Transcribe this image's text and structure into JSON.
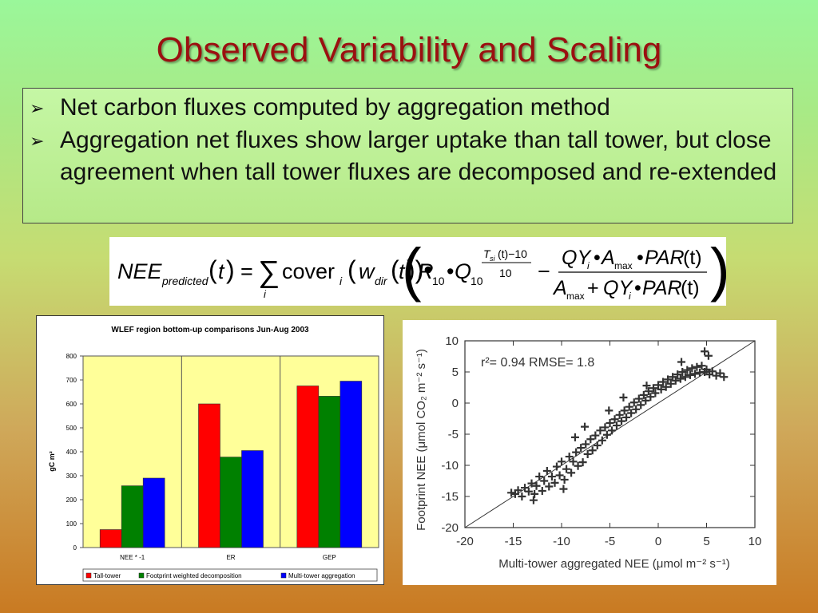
{
  "slide": {
    "title": "Observed Variability and Scaling",
    "bullets": [
      "Net carbon fluxes computed by aggregation method",
      "Aggregation net fluxes show larger uptake than tall tower, but close agreement when tall tower fluxes are decomposed and re-extended"
    ],
    "formula": {
      "lhs_main": "NEE",
      "lhs_sub": "predicted",
      "t": "t",
      "cover": "cover",
      "i": "i",
      "w": "w",
      "w_sub": "dir",
      "R": "R",
      "Q": "Q",
      "ten": "10",
      "Ts": "T",
      "Ts_sub": "si",
      "exp_tail": "(t)−10",
      "exp_den": "10",
      "QY": "QY",
      "Amax": "A",
      "max": "max",
      "PAR": "PAR"
    }
  },
  "chart_data": [
    {
      "type": "bar",
      "title": "WLEF region bottom-up comparisons Jun-Aug 2003",
      "ylabel": "gC m²",
      "xlabel": "",
      "categories": [
        "NEE * -1",
        "ER",
        "GEP"
      ],
      "ylim": [
        0,
        800
      ],
      "yticks": [
        0,
        100,
        200,
        300,
        400,
        500,
        600,
        700,
        800
      ],
      "grid": false,
      "legend": "bottom",
      "plot_background": "#ffff99",
      "series": [
        {
          "name": "Tall-tower",
          "color": "#ff0000",
          "values": [
            75,
            600,
            675
          ]
        },
        {
          "name": "Footprint weighted decomposition",
          "color": "#008000",
          "values": [
            258,
            378,
            632
          ]
        },
        {
          "name": "Multi-tower aggregation",
          "color": "#0000ff",
          "values": [
            290,
            405,
            695
          ]
        }
      ]
    },
    {
      "type": "scatter",
      "annotation": "r²= 0.94 RMSE= 1.8",
      "xlabel": "Multi-tower aggregated NEE (μmol m⁻² s⁻¹)",
      "ylabel": "Footprint NEE (μmol CO₂ m⁻² s⁻¹)",
      "xlim": [
        -20,
        10
      ],
      "ylim": [
        -20,
        10
      ],
      "xticks": [
        -20,
        -15,
        -10,
        -5,
        0,
        5,
        10
      ],
      "yticks": [
        -20,
        -15,
        -10,
        -5,
        0,
        5,
        10
      ],
      "reference_line": "1:1",
      "marker": "+",
      "color": "#333333",
      "points": [
        [
          -15.2,
          -14.4
        ],
        [
          -14.8,
          -14.6
        ],
        [
          -14.5,
          -14.0
        ],
        [
          -14.1,
          -15.0
        ],
        [
          -13.8,
          -13.6
        ],
        [
          -13.4,
          -14.2
        ],
        [
          -13.1,
          -12.9
        ],
        [
          -12.8,
          -14.6
        ],
        [
          -12.6,
          -13.3
        ],
        [
          -12.3,
          -11.8
        ],
        [
          -12.0,
          -14.1
        ],
        [
          -11.8,
          -12.5
        ],
        [
          -11.5,
          -10.9
        ],
        [
          -11.3,
          -13.4
        ],
        [
          -11.0,
          -11.8
        ],
        [
          -10.7,
          -12.8
        ],
        [
          -10.5,
          -10.2
        ],
        [
          -10.2,
          -11.6
        ],
        [
          -10.0,
          -9.4
        ],
        [
          -9.7,
          -12.3
        ],
        [
          -9.5,
          -10.6
        ],
        [
          -9.2,
          -8.6
        ],
        [
          -9.0,
          -11.2
        ],
        [
          -8.8,
          -9.4
        ],
        [
          -8.5,
          -7.9
        ],
        [
          -8.3,
          -10.1
        ],
        [
          -8.0,
          -7.2
        ],
        [
          -7.8,
          -9.5
        ],
        [
          -7.5,
          -6.6
        ],
        [
          -7.3,
          -8.2
        ],
        [
          -7.0,
          -5.8
        ],
        [
          -6.8,
          -7.6
        ],
        [
          -6.5,
          -5.2
        ],
        [
          -6.3,
          -6.8
        ],
        [
          -6.0,
          -4.4
        ],
        [
          -5.8,
          -6.0
        ],
        [
          -5.5,
          -3.9
        ],
        [
          -5.3,
          -5.1
        ],
        [
          -5.0,
          -3.2
        ],
        [
          -4.8,
          -4.4
        ],
        [
          -4.5,
          -2.6
        ],
        [
          -4.3,
          -3.6
        ],
        [
          -4.0,
          -1.9
        ],
        [
          -3.8,
          -2.9
        ],
        [
          -3.5,
          -1.2
        ],
        [
          -3.3,
          -2.3
        ],
        [
          -3.0,
          -0.6
        ],
        [
          -2.8,
          -1.6
        ],
        [
          -2.5,
          0.1
        ],
        [
          -2.3,
          -1.0
        ],
        [
          -2.0,
          0.7
        ],
        [
          -1.8,
          -0.3
        ],
        [
          -1.5,
          1.3
        ],
        [
          -1.3,
          0.4
        ],
        [
          -1.0,
          1.9
        ],
        [
          -0.8,
          1.0
        ],
        [
          -0.5,
          2.4
        ],
        [
          -0.3,
          1.6
        ],
        [
          0.0,
          2.9
        ],
        [
          0.3,
          2.2
        ],
        [
          0.5,
          3.4
        ],
        [
          0.8,
          2.6
        ],
        [
          1.0,
          3.8
        ],
        [
          1.3,
          3.1
        ],
        [
          1.5,
          4.2
        ],
        [
          1.8,
          3.6
        ],
        [
          2.0,
          4.6
        ],
        [
          2.3,
          3.9
        ],
        [
          2.5,
          5.0
        ],
        [
          2.8,
          4.2
        ],
        [
          3.0,
          5.3
        ],
        [
          3.3,
          4.5
        ],
        [
          3.5,
          5.6
        ],
        [
          3.8,
          4.7
        ],
        [
          4.0,
          5.8
        ],
        [
          4.3,
          4.9
        ],
        [
          4.5,
          6.0
        ],
        [
          4.8,
          5.0
        ],
        [
          5.0,
          5.4
        ],
        [
          5.3,
          4.6
        ],
        [
          5.6,
          5.1
        ],
        [
          6.0,
          4.4
        ],
        [
          6.4,
          4.8
        ],
        [
          6.8,
          4.2
        ],
        [
          5.2,
          7.6
        ],
        [
          4.8,
          8.3
        ],
        [
          2.4,
          6.6
        ],
        [
          -1.2,
          2.8
        ],
        [
          -3.6,
          0.9
        ],
        [
          -8.6,
          -5.5
        ],
        [
          -9.8,
          -13.8
        ],
        [
          -12.9,
          -15.6
        ],
        [
          -7.6,
          -3.8
        ],
        [
          -5.1,
          -1.2
        ]
      ]
    }
  ]
}
